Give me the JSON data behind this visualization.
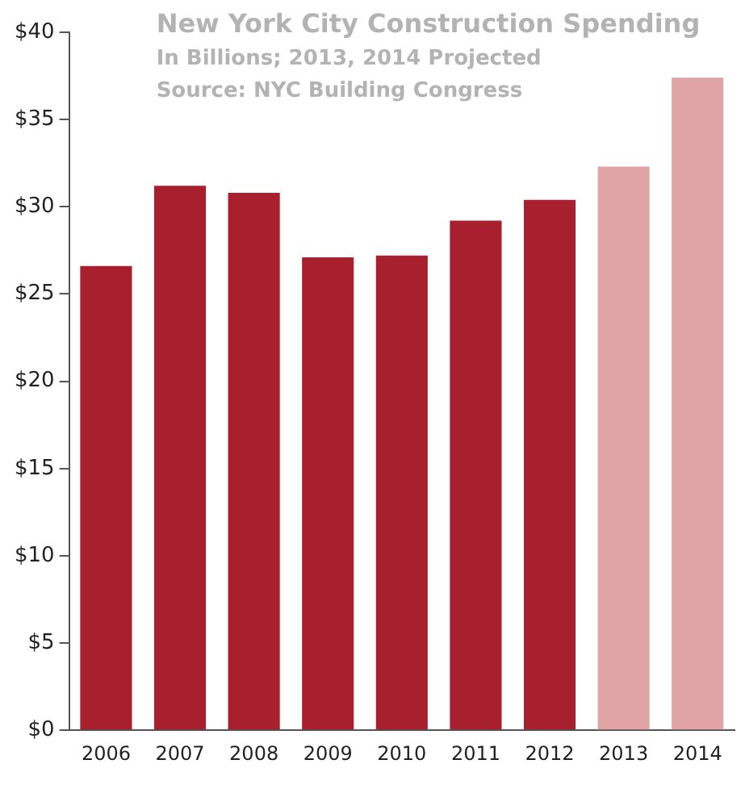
{
  "chart_data": {
    "type": "bar",
    "title": "New York City Construction Spending",
    "subtitle": "In Billions; 2013, 2014 Projected",
    "annotations": [
      "Source: NYC Building Congress"
    ],
    "categories": [
      "2006",
      "2007",
      "2008",
      "2009",
      "2010",
      "2011",
      "2012",
      "2013",
      "2014"
    ],
    "values": [
      26.6,
      31.2,
      30.8,
      27.1,
      27.2,
      29.2,
      30.4,
      32.3,
      37.4
    ],
    "colors": [
      "#a8202e",
      "#a8202e",
      "#a8202e",
      "#a8202e",
      "#a8202e",
      "#a8202e",
      "#a8202e",
      "#e0a4a6",
      "#e0a4a6"
    ],
    "ylim": [
      0,
      40
    ],
    "yticks": [
      {
        "value": 0,
        "label": "$0"
      },
      {
        "value": 5,
        "label": "$5"
      },
      {
        "value": 10,
        "label": "$10"
      },
      {
        "value": 15,
        "label": "$15"
      },
      {
        "value": 20,
        "label": "$20"
      },
      {
        "value": 25,
        "label": "$25"
      },
      {
        "value": 30,
        "label": "$30"
      },
      {
        "value": 35,
        "label": "$35"
      },
      {
        "value": 40,
        "label": "$40"
      }
    ],
    "grid": false,
    "legend": false
  }
}
